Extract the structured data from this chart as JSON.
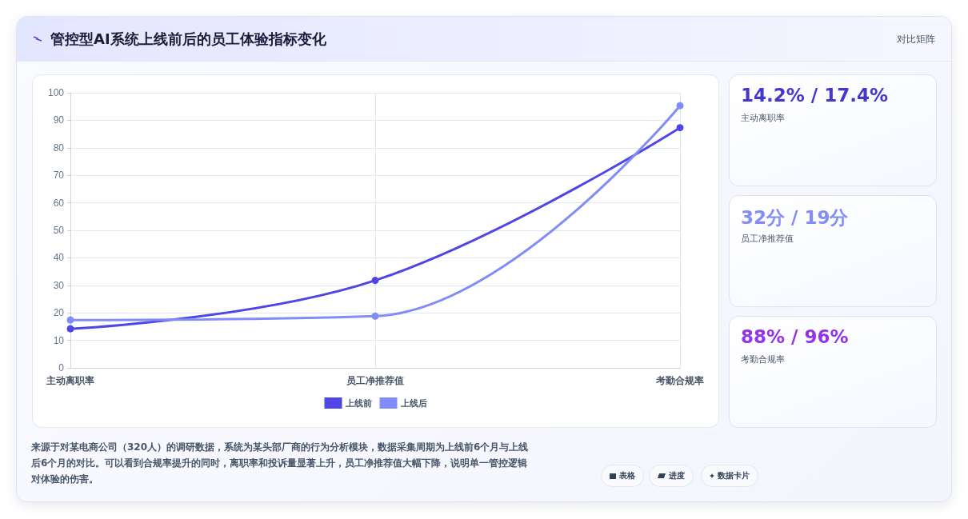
{
  "chart_data": [
    {
      "type": "line",
      "title": "管控型AI系统上线前后的员工体验指标变化",
      "categories": [
        "主动离职率",
        "员工净推荐值",
        "考勤合规率"
      ],
      "series": [
        {
          "name": "上线前",
          "color": "#4f46e5",
          "values": [
            14.2,
            31.8,
            87.3
          ]
        },
        {
          "name": "上线后",
          "color": "#818cf8",
          "values": [
            17.4,
            18.8,
            95.3
          ]
        }
      ],
      "ylim": [
        0,
        100
      ],
      "yticks": [
        0,
        10,
        20,
        30,
        40,
        50,
        60,
        70,
        80,
        90,
        100
      ],
      "grid": true,
      "legend": "bottom",
      "marker": "circle",
      "line_style": "solid",
      "annotations": [
        "对比矩阵",
        "来源于对某电商公司（320人）的调研数据，系统为某头部厂商的行为分析模块，数据采集周期为上线前6个月与上线后6个月的对比。可以看到合规率提升的同时，离职率和投诉量显著上升，员工净推荐值大幅下降，说明单一管控逻辑对体验的伤害。",
        "表格",
        "进度",
        "数据卡片"
      ]
    },
    {
      "type": "other",
      "annotations": [
        "14.2% / 17.4%",
        "主动离职率",
        "32分 / 19分",
        "员工净推荐值",
        "88% / 96%",
        "考勤合规率"
      ]
    }
  ]
}
